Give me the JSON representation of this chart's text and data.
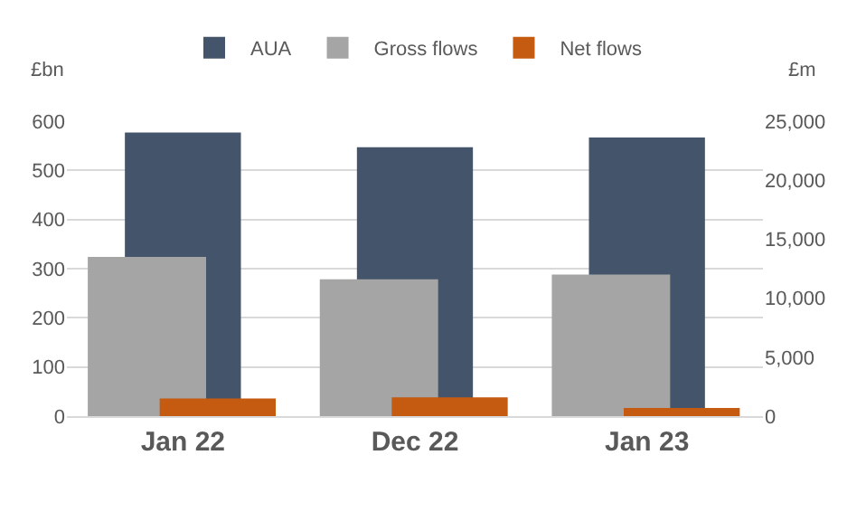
{
  "chart_data": {
    "type": "bar",
    "categories": [
      "Jan 22",
      "Dec 22",
      "Jan 23"
    ],
    "series": [
      {
        "name": "AUA",
        "color": "#44546a",
        "values": [
          577,
          547,
          567
        ]
      },
      {
        "name": "Gross flows",
        "color": "#a5a5a5",
        "values": [
          13500,
          11600,
          12000
        ],
        "axis": "y2"
      },
      {
        "name": "Net flows",
        "color": "#c55a11",
        "values": [
          1500,
          1600,
          700
        ],
        "axis": "y2"
      }
    ],
    "ylabel": "£bn",
    "y2label": "£m",
    "ylim": [
      0,
      600
    ],
    "yticks": [
      0,
      100,
      200,
      300,
      400,
      500,
      600
    ],
    "y2lim": [
      0,
      25000
    ],
    "y2ticks": [
      0,
      {
        "value": 5000,
        "label": "5,000"
      },
      {
        "value": 10000,
        "label": "10,000"
      },
      {
        "value": 15000,
        "label": "15,000"
      },
      {
        "value": 20000,
        "label": "20,000"
      },
      {
        "value": 25000,
        "label": "25,000"
      }
    ],
    "grid": "y",
    "legend": "top"
  }
}
